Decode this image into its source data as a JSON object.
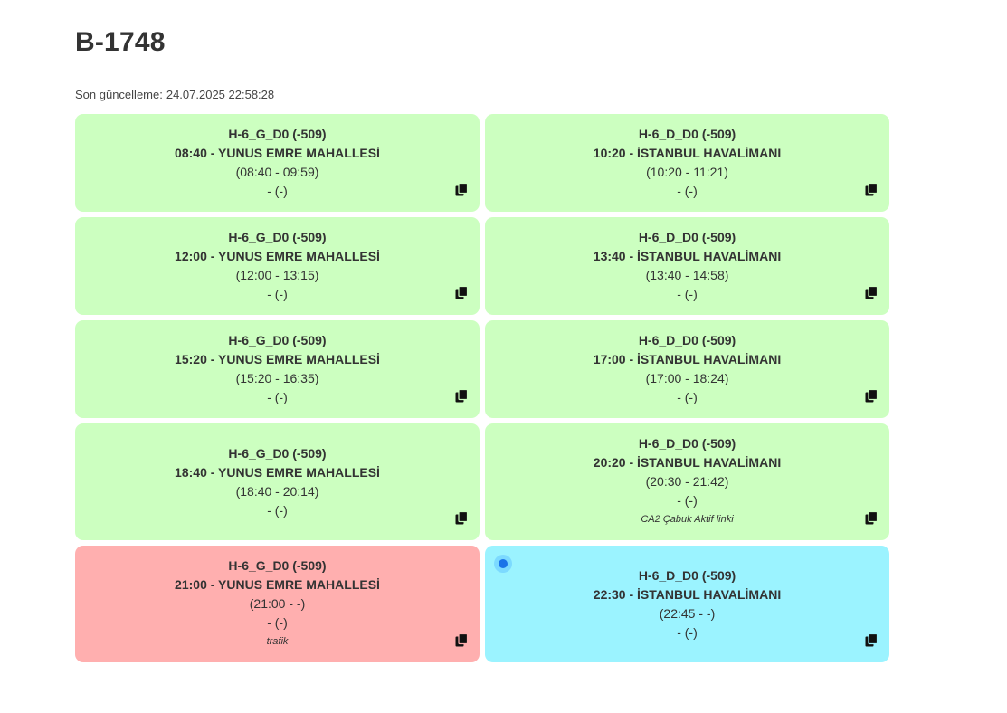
{
  "page": {
    "title": "B-1748",
    "last_updated_label": "Son güncelleme:",
    "last_updated_value": "24.07.2025 22:58:28"
  },
  "colors": {
    "completed": "#ccffc0",
    "problem": "#ffafaf",
    "active": "#9bf3ff",
    "live_indicator": "#1a73e8"
  },
  "icons": {
    "copy": "copy-icon",
    "live": "live-indicator-icon"
  },
  "cards": [
    {
      "route": "H-6_G_D0 (-509)",
      "departure": "08:40 - YUNUS EMRE MAHALLESİ",
      "span": "(08:40 - 09:59)",
      "detail": "- (-)",
      "note": "",
      "status": "completed"
    },
    {
      "route": "H-6_D_D0 (-509)",
      "departure": "10:20 - İSTANBUL HAVALİMANI",
      "span": "(10:20 - 11:21)",
      "detail": "- (-)",
      "note": "",
      "status": "completed"
    },
    {
      "route": "H-6_G_D0 (-509)",
      "departure": "12:00 - YUNUS EMRE MAHALLESİ",
      "span": "(12:00 - 13:15)",
      "detail": "- (-)",
      "note": "",
      "status": "completed"
    },
    {
      "route": "H-6_D_D0 (-509)",
      "departure": "13:40 - İSTANBUL HAVALİMANI",
      "span": "(13:40 - 14:58)",
      "detail": "- (-)",
      "note": "",
      "status": "completed"
    },
    {
      "route": "H-6_G_D0 (-509)",
      "departure": "15:20 - YUNUS EMRE MAHALLESİ",
      "span": "(15:20 - 16:35)",
      "detail": "- (-)",
      "note": "",
      "status": "completed"
    },
    {
      "route": "H-6_D_D0 (-509)",
      "departure": "17:00 - İSTANBUL HAVALİMANI",
      "span": "(17:00 - 18:24)",
      "detail": "- (-)",
      "note": "",
      "status": "completed"
    },
    {
      "route": "H-6_G_D0 (-509)",
      "departure": "18:40 - YUNUS EMRE MAHALLESİ",
      "span": "(18:40 - 20:14)",
      "detail": "- (-)",
      "note": "",
      "status": "completed"
    },
    {
      "route": "H-6_D_D0 (-509)",
      "departure": "20:20 - İSTANBUL HAVALİMANI",
      "span": "(20:30 - 21:42)",
      "detail": "- (-)",
      "note": "CA2 Çabuk Aktif linki",
      "status": "completed"
    },
    {
      "route": "H-6_G_D0 (-509)",
      "departure": "21:00 - YUNUS EMRE MAHALLESİ",
      "span": "(21:00 - -)",
      "detail": "- (-)",
      "note": "trafik",
      "status": "problem"
    },
    {
      "route": "H-6_D_D0 (-509)",
      "departure": "22:30 - İSTANBUL HAVALİMANI",
      "span": "(22:45 - -)",
      "detail": "- (-)",
      "note": "",
      "status": "active"
    }
  ]
}
